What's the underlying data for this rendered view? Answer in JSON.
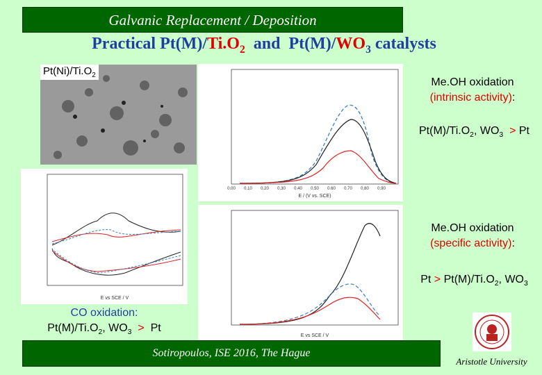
{
  "header": {
    "title": "Galvanic Replacement / Deposition"
  },
  "subtitle": [
    "Practical Pt(M)/",
    "Ti.O",
    "2",
    "  and  Pt(M)/",
    "WO",
    "3",
    " catalysts"
  ],
  "image_label": [
    "Pt(Ni)/Ti.O",
    "2"
  ],
  "charts": {
    "top": {
      "xlabel": "E / (V vs. SCE)",
      "xticks": [
        "0.00",
        "0.10",
        "0.20",
        "0.30",
        "0.40",
        "0.50",
        "0.60",
        "0.70",
        "0.80",
        "0.90"
      ]
    },
    "bottom": {
      "xlabel": "E vs SCE / V"
    },
    "left": {
      "xlabel": "E vs SCE / V"
    }
  },
  "notes": {
    "intrinsic": {
      "line1": "Me.OH oxidation",
      "line2": [
        "(intrinsic activity)",
        ":"
      ],
      "result": [
        "Pt(M)/Ti.O",
        "2",
        ", WO",
        "3",
        "  > ",
        "Pt"
      ]
    },
    "specific": {
      "line1": "Me.OH oxidation",
      "line2": [
        "(specific activity)",
        ":"
      ],
      "result": [
        "Pt",
        " > ",
        "Pt(M)/Ti.O",
        "2",
        ", WO",
        "3"
      ]
    },
    "co": {
      "line1": "CO oxidation:",
      "result": [
        "Pt(M)/Ti.O",
        "2",
        ", WO",
        "3",
        "  >  ",
        "Pt"
      ]
    }
  },
  "footer": {
    "text": "Sotiropoulos, ISE 2016, The Hague",
    "institution": "Aristotle University"
  }
}
